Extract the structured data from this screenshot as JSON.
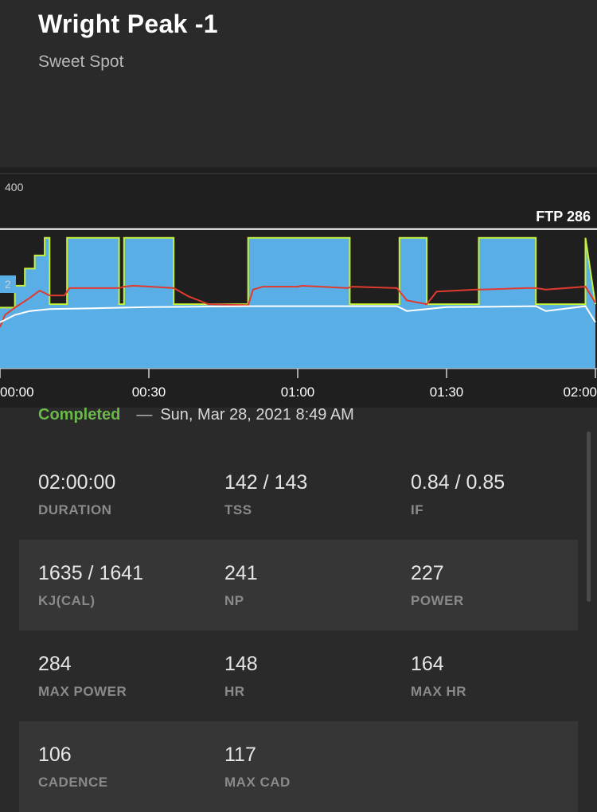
{
  "workout": {
    "title": "Wright Peak -1",
    "subtitle": "Sweet Spot"
  },
  "chart_data": {
    "type": "area",
    "y_tick_labels": [
      "400",
      "2"
    ],
    "ftp_label": "FTP 286",
    "x_tick_labels": [
      "00:00",
      "00:30",
      "01:00",
      "01:30",
      "02:00"
    ],
    "x_range_minutes": [
      0,
      120
    ],
    "ylim": [
      0,
      400
    ],
    "ftp": 286,
    "series": [
      {
        "role": "target power",
        "color": "#5aaee6",
        "x": [
          0,
          3,
          3,
          5,
          5,
          7,
          7,
          9,
          9,
          10,
          10,
          13.5,
          13.5,
          14,
          14,
          24,
          24,
          25,
          25,
          35,
          35,
          50,
          50,
          60,
          60,
          60.5,
          60.5,
          70,
          70,
          70.5,
          70.5,
          80.5,
          80.5,
          86,
          86,
          96.5,
          96.5,
          97,
          97,
          107,
          107,
          108,
          108,
          118,
          118,
          120
        ],
        "values": [
          125,
          125,
          170,
          170,
          205,
          205,
          232,
          232,
          268,
          268,
          132,
          132,
          268,
          268,
          268,
          268,
          132,
          132,
          268,
          268,
          132,
          132,
          268,
          268,
          268,
          268,
          268,
          268,
          268,
          268,
          132,
          132,
          268,
          268,
          132,
          132,
          268,
          268,
          268,
          268,
          268,
          268,
          132,
          132,
          268,
          132
        ]
      },
      {
        "role": "actual power",
        "color": "#e03a2e",
        "x": [
          0,
          1,
          3,
          6,
          8,
          10,
          13,
          14,
          16,
          24,
          25,
          27,
          35,
          38,
          42,
          50,
          51,
          53,
          60,
          61,
          70,
          71,
          80,
          82,
          86,
          88,
          96,
          97,
          106,
          107,
          108,
          110,
          118,
          120
        ],
        "values": [
          85,
          110,
          125,
          145,
          160,
          150,
          150,
          165,
          165,
          165,
          168,
          170,
          165,
          148,
          132,
          130,
          162,
          168,
          168,
          170,
          165,
          168,
          165,
          140,
          132,
          158,
          162,
          162,
          165,
          165,
          165,
          162,
          168,
          135
        ]
      },
      {
        "role": "cadence / heart rate",
        "color": "#ffffff",
        "x": [
          0,
          1,
          3,
          6,
          10,
          20,
          30,
          40,
          50,
          60,
          70,
          80,
          82,
          86,
          90,
          100,
          108,
          110,
          118,
          120
        ],
        "values": [
          95,
          100,
          110,
          118,
          122,
          124,
          126,
          127,
          128,
          128,
          128,
          128,
          118,
          122,
          126,
          127,
          128,
          118,
          128,
          95
        ]
      }
    ]
  },
  "status": {
    "completed": "Completed",
    "dash": "—",
    "date": "Sun, Mar 28, 2021 8:49 AM"
  },
  "stats": [
    [
      {
        "value": "02:00:00",
        "label": "DURATION"
      },
      {
        "value": "142 / 143",
        "label": "TSS"
      },
      {
        "value": "0.84 / 0.85",
        "label": "IF"
      }
    ],
    [
      {
        "value": "1635 / 1641",
        "label": "KJ(CAL)"
      },
      {
        "value": "241",
        "label": "NP"
      },
      {
        "value": "227",
        "label": "POWER"
      }
    ],
    [
      {
        "value": "284",
        "label": "MAX POWER"
      },
      {
        "value": "148",
        "label": "HR"
      },
      {
        "value": "164",
        "label": "MAX HR"
      }
    ],
    [
      {
        "value": "106",
        "label": "CADENCE"
      },
      {
        "value": "117",
        "label": "MAX CAD"
      }
    ]
  ]
}
